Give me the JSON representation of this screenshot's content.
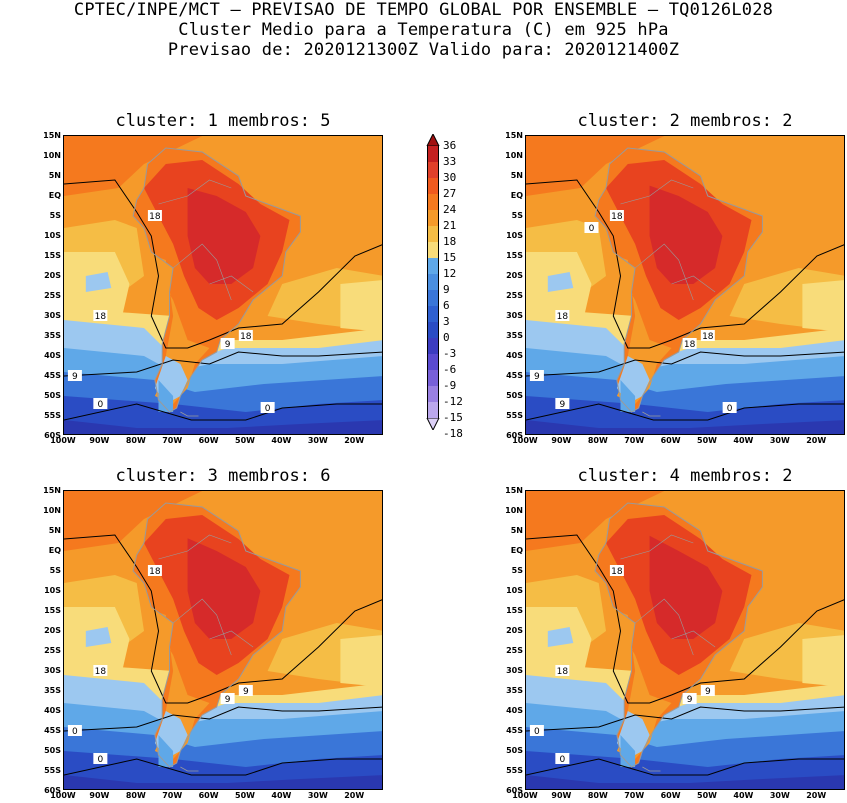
{
  "header": {
    "line1": "CPTEC/INPE/MCT — PREVISAO DE TEMPO GLOBAL POR ENSEMBLE — TQ0126L028",
    "line2": "Cluster Medio para a Temperatura (C) em 925 hPa",
    "line3": "Previsao de: 2020121300Z   Valido para: 2020121400Z"
  },
  "panels": [
    {
      "title": "cluster: 1  membros: 5",
      "contour_labels": [
        "18",
        "18",
        "18",
        "9",
        "9",
        "0",
        "0"
      ]
    },
    {
      "title": "cluster: 2  membros: 2",
      "contour_labels": [
        "18",
        "18",
        "18",
        "18",
        "9",
        "9",
        "0",
        "0"
      ]
    },
    {
      "title": "cluster: 3  membros: 6",
      "contour_labels": [
        "18",
        "18",
        "9",
        "9",
        "0",
        "0"
      ]
    },
    {
      "title": "cluster: 4  membros: 2",
      "contour_labels": [
        "18",
        "18",
        "9",
        "9",
        "0",
        "0"
      ]
    }
  ],
  "lat_labels": [
    "15N",
    "10N",
    "5N",
    "EQ",
    "5S",
    "10S",
    "15S",
    "20S",
    "25S",
    "30S",
    "35S",
    "40S",
    "45S",
    "50S",
    "55S",
    "60S"
  ],
  "lon_labels": [
    "100W",
    "90W",
    "80W",
    "70W",
    "60W",
    "50W",
    "40W",
    "30W",
    "20W"
  ],
  "colorbar": {
    "levels": [
      "36",
      "33",
      "30",
      "27",
      "24",
      "21",
      "18",
      "15",
      "12",
      "9",
      "6",
      "3",
      "0",
      "-3",
      "-6",
      "-9",
      "-12",
      "-15",
      "-18"
    ],
    "colors": [
      "#a01010",
      "#c42020",
      "#e0402a",
      "#f05a1e",
      "#f5791e",
      "#f59a2a",
      "#f5bd45",
      "#f8dc7a",
      "#5fa8e8",
      "#4a8fe0",
      "#3a76d8",
      "#2f60d0",
      "#2a4cc4",
      "#3c3cc0",
      "#5a4ad0",
      "#7860d8",
      "#9a80e2",
      "#bba8ec",
      "#dcd0f6"
    ]
  },
  "legend_colors": {
    "t_gt30": "#d62a2a",
    "t_27_30": "#e8431f",
    "t_24_27": "#f5791e",
    "t_21_24": "#f59a2a",
    "t_18_21": "#f5bd45",
    "t_15_18": "#f8dc7a",
    "t_12_15": "#9cc8f0",
    "t_9_12": "#5fa8e8",
    "t_6_9": "#3a76d8",
    "t_0_6": "#2a4cc4",
    "t_lt0": "#2a38b0",
    "contour": "#000000",
    "coast": "#9a9a9a"
  }
}
